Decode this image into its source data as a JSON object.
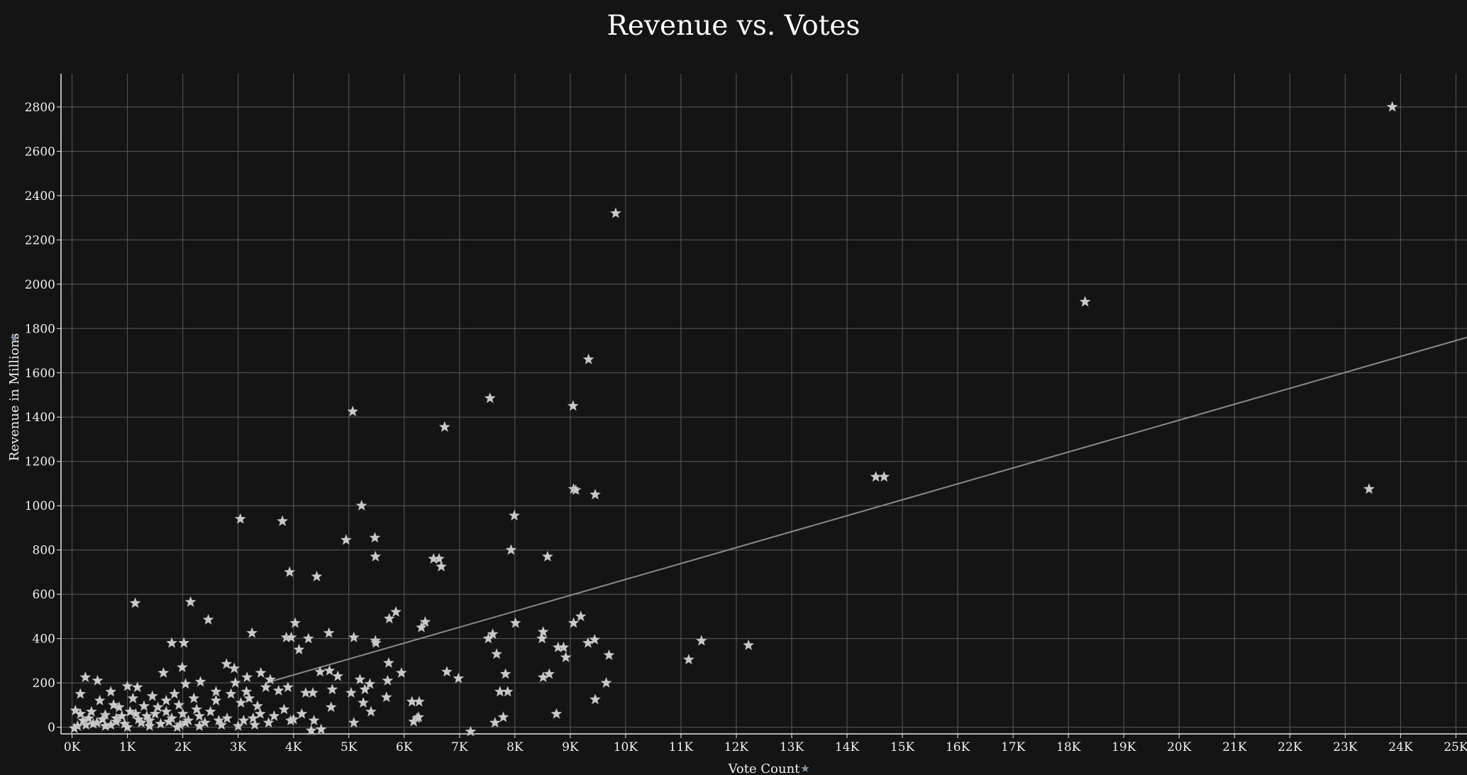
{
  "chart_data": {
    "type": "scatter",
    "title": "Revenue vs. Votes",
    "xlabel": "Vote Count",
    "ylabel": "Revenue in Millions",
    "xlim": [
      -200,
      25200
    ],
    "ylim": [
      -30,
      2950
    ],
    "x_ticks": [
      0,
      1000,
      2000,
      3000,
      4000,
      5000,
      6000,
      7000,
      8000,
      9000,
      10000,
      11000,
      12000,
      13000,
      14000,
      15000,
      16000,
      17000,
      18000,
      19000,
      20000,
      21000,
      22000,
      23000,
      24000,
      25000
    ],
    "x_tick_labels": [
      "0K",
      "1K",
      "2K",
      "3K",
      "4K",
      "5K",
      "6K",
      "7K",
      "8K",
      "9K",
      "10K",
      "11K",
      "12K",
      "13K",
      "14K",
      "15K",
      "16K",
      "17K",
      "18K",
      "19K",
      "20K",
      "21K",
      "22K",
      "23K",
      "24K",
      "25K"
    ],
    "y_ticks": [
      0,
      200,
      400,
      600,
      800,
      1000,
      1200,
      1400,
      1600,
      1800,
      2000,
      2200,
      2400,
      2600,
      2800
    ],
    "y_tick_labels": [
      "0",
      "200",
      "400",
      "600",
      "800",
      "1000",
      "1200",
      "1400",
      "1600",
      "1800",
      "2000",
      "2200",
      "2400",
      "2600",
      "2800"
    ],
    "grid": true,
    "marker": "star",
    "trendline": {
      "type": "linear",
      "x": [
        3500,
        25200
      ],
      "y": [
        200,
        1760
      ]
    },
    "points": [
      [
        23850,
        2800
      ],
      [
        9820,
        2320
      ],
      [
        18300,
        1920
      ],
      [
        9330,
        1660
      ],
      [
        7550,
        1485
      ],
      [
        9050,
        1450
      ],
      [
        5070,
        1425
      ],
      [
        6730,
        1355
      ],
      [
        14520,
        1130
      ],
      [
        14670,
        1130
      ],
      [
        23430,
        1075
      ],
      [
        9060,
        1075
      ],
      [
        9100,
        1070
      ],
      [
        9450,
        1050
      ],
      [
        5230,
        1000
      ],
      [
        3040,
        940
      ],
      [
        3800,
        930
      ],
      [
        7990,
        955
      ],
      [
        4950,
        845
      ],
      [
        5470,
        855
      ],
      [
        7930,
        800
      ],
      [
        5480,
        770
      ],
      [
        8590,
        770
      ],
      [
        6530,
        760
      ],
      [
        6630,
        760
      ],
      [
        6670,
        725
      ],
      [
        3930,
        700
      ],
      [
        4420,
        680
      ],
      [
        1140,
        560
      ],
      [
        2140,
        565
      ],
      [
        2460,
        485
      ],
      [
        5850,
        520
      ],
      [
        5730,
        490
      ],
      [
        9190,
        500
      ],
      [
        9060,
        470
      ],
      [
        8010,
        470
      ],
      [
        4030,
        470
      ],
      [
        6380,
        475
      ],
      [
        6310,
        450
      ],
      [
        3250,
        425
      ],
      [
        4640,
        425
      ],
      [
        7600,
        420
      ],
      [
        8510,
        430
      ],
      [
        3870,
        405
      ],
      [
        3960,
        405
      ],
      [
        4270,
        400
      ],
      [
        5090,
        405
      ],
      [
        7520,
        400
      ],
      [
        8490,
        400
      ],
      [
        9440,
        395
      ],
      [
        11370,
        390
      ],
      [
        5480,
        390
      ],
      [
        5490,
        380
      ],
      [
        1800,
        380
      ],
      [
        2020,
        380
      ],
      [
        9320,
        380
      ],
      [
        12220,
        370
      ],
      [
        8780,
        360
      ],
      [
        8880,
        360
      ],
      [
        4100,
        350
      ],
      [
        9700,
        325
      ],
      [
        7670,
        330
      ],
      [
        8920,
        315
      ],
      [
        11140,
        305
      ],
      [
        2790,
        285
      ],
      [
        5720,
        290
      ],
      [
        2930,
        265
      ],
      [
        1990,
        270
      ],
      [
        4480,
        250
      ],
      [
        4650,
        255
      ],
      [
        6770,
        250
      ],
      [
        1650,
        245
      ],
      [
        3410,
        245
      ],
      [
        5950,
        245
      ],
      [
        7830,
        240
      ],
      [
        8620,
        240
      ],
      [
        3160,
        225
      ],
      [
        8510,
        225
      ],
      [
        4800,
        230
      ],
      [
        6980,
        220
      ],
      [
        5200,
        215
      ],
      [
        5700,
        210
      ],
      [
        3580,
        215
      ],
      [
        240,
        225
      ],
      [
        460,
        210
      ],
      [
        2320,
        205
      ],
      [
        2050,
        195
      ],
      [
        9650,
        200
      ],
      [
        5380,
        195
      ],
      [
        1000,
        185
      ],
      [
        1180,
        180
      ],
      [
        3900,
        180
      ],
      [
        3500,
        180
      ],
      [
        3730,
        165
      ],
      [
        4700,
        170
      ],
      [
        5290,
        170
      ],
      [
        4220,
        155
      ],
      [
        4350,
        155
      ],
      [
        7730,
        160
      ],
      [
        7870,
        160
      ],
      [
        5040,
        155
      ],
      [
        700,
        160
      ],
      [
        150,
        150
      ],
      [
        5680,
        135
      ],
      [
        9450,
        125
      ],
      [
        6140,
        115
      ],
      [
        6270,
        115
      ],
      [
        4680,
        90
      ],
      [
        5400,
        70
      ],
      [
        60,
        75
      ],
      [
        8750,
        60
      ],
      [
        7790,
        45
      ],
      [
        6230,
        40
      ],
      [
        5090,
        20
      ],
      [
        4370,
        30
      ],
      [
        4000,
        35
      ],
      [
        3270,
        40
      ],
      [
        3830,
        80
      ],
      [
        6170,
        25
      ],
      [
        7640,
        20
      ],
      [
        7200,
        -20
      ],
      [
        4500,
        -10
      ],
      [
        4320,
        -15
      ],
      [
        6260,
        45
      ],
      [
        5260,
        110
      ],
      [
        3050,
        110
      ],
      [
        3350,
        95
      ],
      [
        2870,
        150
      ],
      [
        3150,
        160
      ],
      [
        2600,
        120
      ],
      [
        2250,
        80
      ],
      [
        1930,
        100
      ],
      [
        1700,
        120
      ],
      [
        1450,
        140
      ],
      [
        1300,
        95
      ],
      [
        1100,
        130
      ],
      [
        850,
        90
      ],
      [
        600,
        55
      ],
      [
        350,
        70
      ],
      [
        800,
        40
      ],
      [
        1500,
        60
      ],
      [
        1800,
        40
      ],
      [
        2100,
        30
      ],
      [
        2400,
        20
      ],
      [
        2700,
        10
      ],
      [
        3000,
        5
      ],
      [
        2300,
        50
      ],
      [
        1950,
        10
      ],
      [
        1600,
        15
      ],
      [
        1250,
        20
      ],
      [
        950,
        15
      ],
      [
        700,
        10
      ],
      [
        450,
        20
      ],
      [
        250,
        10
      ],
      [
        100,
        5
      ],
      [
        40,
        -5
      ],
      [
        200,
        30
      ],
      [
        550,
        35
      ],
      [
        900,
        50
      ],
      [
        1150,
        60
      ],
      [
        1400,
        30
      ],
      [
        1700,
        70
      ],
      [
        2000,
        60
      ],
      [
        2500,
        70
      ],
      [
        2800,
        40
      ],
      [
        3100,
        30
      ],
      [
        3400,
        60
      ],
      [
        3650,
        50
      ],
      [
        3950,
        30
      ],
      [
        4150,
        60
      ],
      [
        2200,
        130
      ],
      [
        2600,
        160
      ],
      [
        2950,
        200
      ],
      [
        3200,
        130
      ],
      [
        1850,
        150
      ],
      [
        1550,
        90
      ],
      [
        1350,
        50
      ],
      [
        1050,
        70
      ],
      [
        750,
        100
      ],
      [
        500,
        120
      ],
      [
        300,
        40
      ],
      [
        150,
        60
      ],
      [
        600,
        5
      ],
      [
        1000,
        0
      ],
      [
        1400,
        5
      ],
      [
        1900,
        0
      ],
      [
        2300,
        5
      ],
      [
        2650,
        30
      ],
      [
        3300,
        10
      ],
      [
        3550,
        20
      ],
      [
        2050,
        20
      ],
      [
        1750,
        25
      ],
      [
        1200,
        35
      ],
      [
        800,
        25
      ],
      [
        380,
        15
      ]
    ]
  }
}
